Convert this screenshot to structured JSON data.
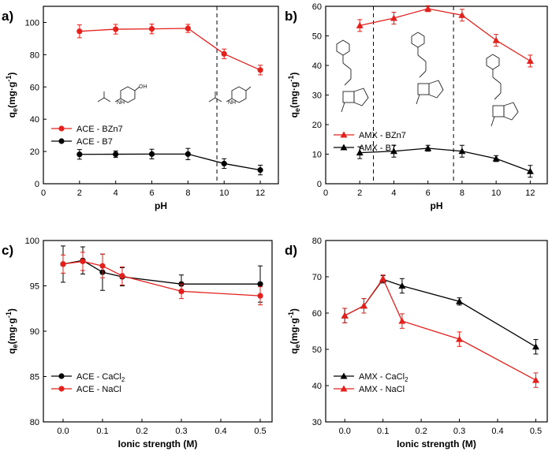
{
  "colors": {
    "red": "#e4201c",
    "black": "#000000"
  },
  "chart_data": [
    {
      "panel_label": "a)",
      "type": "line",
      "xlabel": "pH",
      "ylabel": {
        "main": "q",
        "sub": "e",
        "unit": "(mg·g",
        "sup": "-1",
        "close": ")"
      },
      "xlim": [
        0,
        13
      ],
      "ylim": [
        0,
        110
      ],
      "xticks": [
        0,
        2,
        4,
        6,
        8,
        10,
        12
      ],
      "yticks": [
        0,
        20,
        40,
        60,
        80,
        100
      ],
      "dashed_x": [
        9.6
      ],
      "legend": "left",
      "series": [
        {
          "name": "ACE - BZn7",
          "color": "red",
          "marker": "circle",
          "x": [
            2,
            4,
            6,
            8,
            10,
            12
          ],
          "y": [
            94.5,
            95.8,
            96.0,
            96.3,
            80.5,
            70.5
          ],
          "err": [
            4,
            3,
            3,
            2.5,
            3,
            3
          ]
        },
        {
          "name": "ACE - B7",
          "color": "black",
          "marker": "circle",
          "x": [
            2,
            4,
            6,
            8,
            10,
            12
          ],
          "y": [
            18.2,
            18.3,
            18.4,
            18.4,
            12.5,
            8.5
          ],
          "err": [
            3,
            2,
            3,
            3.5,
            3,
            3
          ]
        }
      ]
    },
    {
      "panel_label": "b)",
      "type": "line",
      "xlabel": "pH",
      "ylabel": {
        "main": "q",
        "sub": "e",
        "unit": "(mg·g",
        "sup": "-1",
        "close": ")"
      },
      "xlim": [
        0,
        13
      ],
      "ylim": [
        0,
        60
      ],
      "xticks": [
        0,
        2,
        4,
        6,
        8,
        10,
        12
      ],
      "yticks": [
        0,
        10,
        20,
        30,
        40,
        50,
        60
      ],
      "dashed_x": [
        2.8,
        7.5
      ],
      "legend": "left",
      "series": [
        {
          "name": "AMX - BZn7",
          "color": "red",
          "marker": "triangle",
          "x": [
            2,
            4,
            6,
            8,
            10,
            12
          ],
          "y": [
            53.5,
            56.0,
            59.2,
            57.0,
            48.5,
            41.5
          ],
          "err": [
            2,
            2,
            1,
            2,
            2,
            2
          ]
        },
        {
          "name": "AMX - B7",
          "color": "black",
          "marker": "triangle",
          "x": [
            2,
            4,
            6,
            8,
            10,
            12
          ],
          "y": [
            10.5,
            11.0,
            12.0,
            11.0,
            8.5,
            4.2
          ],
          "err": [
            2,
            2,
            1,
            2,
            1,
            2
          ]
        }
      ]
    },
    {
      "panel_label": "c)",
      "type": "line",
      "xlabel": "Ionic strength (M)",
      "ylabel": {
        "main": "q",
        "sub": "e",
        "unit": "(mg·g",
        "sup": "-1",
        "close": ")"
      },
      "xlim": [
        -0.05,
        0.53
      ],
      "ylim": [
        80,
        100
      ],
      "xticks": [
        0.0,
        0.1,
        0.2,
        0.3,
        0.4,
        0.5
      ],
      "yticks": [
        80,
        85,
        90,
        95,
        100
      ],
      "dashed_x": [],
      "legend": "left",
      "series": [
        {
          "name": "ACE - CaCl",
          "name_sub": "2",
          "color": "black",
          "marker": "circle",
          "x": [
            0,
            0.05,
            0.1,
            0.15,
            0.3,
            0.5
          ],
          "y": [
            97.4,
            97.8,
            96.5,
            96.0,
            95.2,
            95.2
          ],
          "err": [
            2,
            1.5,
            2,
            1,
            1,
            2
          ]
        },
        {
          "name": "ACE - NaCl",
          "color": "red",
          "marker": "circle",
          "x": [
            0,
            0.05,
            0.1,
            0.15,
            0.3,
            0.5
          ],
          "y": [
            97.4,
            97.7,
            97.2,
            96.1,
            94.4,
            93.9
          ],
          "err": [
            1,
            1,
            1.3,
            1,
            0.8,
            1
          ]
        }
      ]
    },
    {
      "panel_label": "d)",
      "type": "line",
      "xlabel": "Ionic strength (M)",
      "ylabel": {
        "main": "q",
        "sub": "e",
        "unit": "(mg·g",
        "sup": "-1",
        "close": ")"
      },
      "xlim": [
        -0.05,
        0.53
      ],
      "ylim": [
        30,
        80
      ],
      "xticks": [
        0.0,
        0.1,
        0.2,
        0.3,
        0.4,
        0.5
      ],
      "yticks": [
        30,
        40,
        50,
        60,
        70,
        80
      ],
      "dashed_x": [],
      "legend": "left",
      "series": [
        {
          "name": "AMX - CaCl",
          "name_sub": "2",
          "color": "black",
          "marker": "triangle",
          "x": [
            0,
            0.05,
            0.1,
            0.15,
            0.3,
            0.5
          ],
          "y": [
            59.3,
            62.0,
            69.3,
            67.5,
            63.2,
            50.7
          ],
          "err": [
            2,
            2,
            1,
            2,
            1,
            2
          ]
        },
        {
          "name": "AMX - NaCl",
          "color": "red",
          "marker": "triangle",
          "x": [
            0,
            0.05,
            0.1,
            0.15,
            0.3,
            0.5
          ],
          "y": [
            59.3,
            62.0,
            69.5,
            57.8,
            52.8,
            41.5
          ],
          "err": [
            2,
            2,
            1,
            2,
            2,
            2
          ]
        }
      ]
    }
  ]
}
